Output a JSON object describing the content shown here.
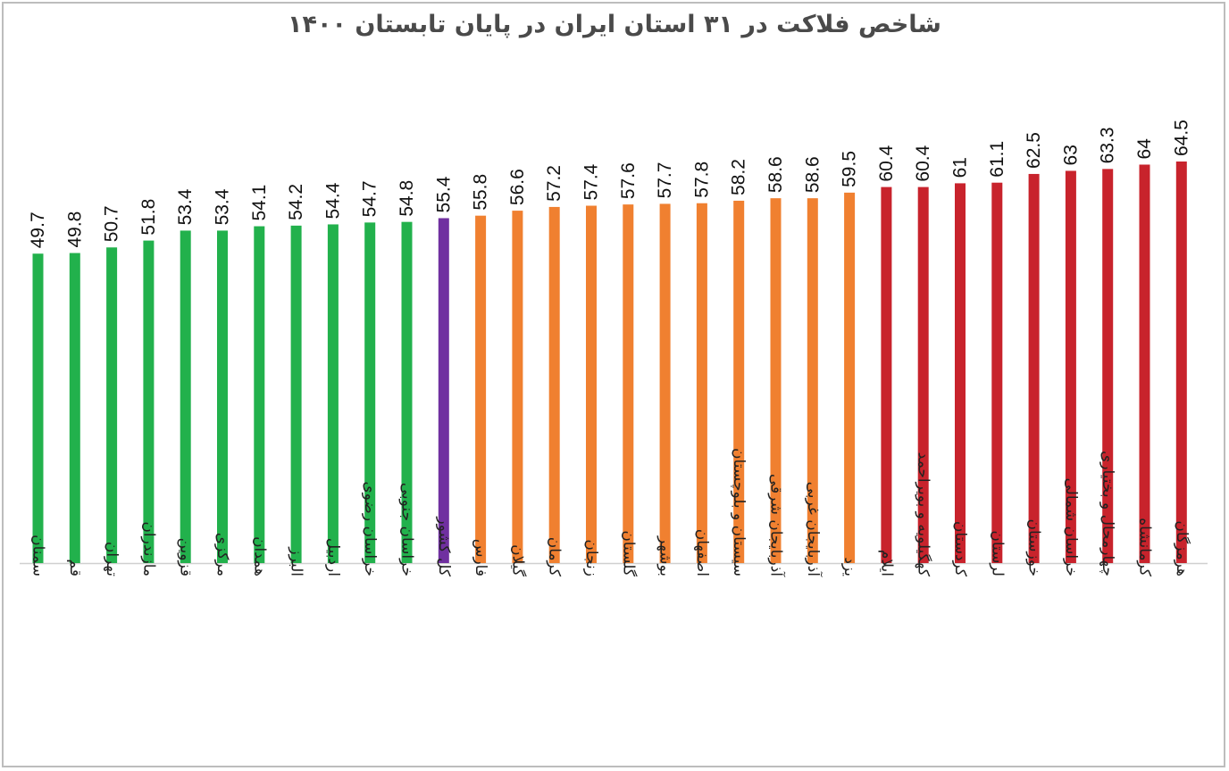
{
  "chart_data": {
    "type": "bar",
    "title": "شاخص فلاکت در ۳۱ استان ایران در پایان تابستان ۱۴۰۰",
    "categories": [
      "سمنان",
      "قم",
      "تهران",
      "مازندران",
      "قزوین",
      "مرکزی",
      "همدان",
      "البرز",
      "اردبیل",
      "خراسان رضوی",
      "خراسان جنوبی",
      "کل کشور",
      "فارس",
      "گیلان",
      "کرمان",
      "زنجان",
      "گلستان",
      "بوشهر",
      "اصفهان",
      "سیستان و بلوچستان",
      "آذربایجان شرقی",
      "آذربایجان غربی",
      "یزد",
      "ایلام",
      "کهگیلویه و بویراحمد",
      "کردستان",
      "لرستان",
      "خوزستان",
      "خراسان شمالی",
      "چهارمحال و بختیاری",
      "کرمانشاه",
      "هرمزگان"
    ],
    "values": [
      49.7,
      49.8,
      50.7,
      51.8,
      53.4,
      53.4,
      54.1,
      54.2,
      54.4,
      54.7,
      54.8,
      55.4,
      55.8,
      56.6,
      57.2,
      57.4,
      57.6,
      57.7,
      57.8,
      58.2,
      58.6,
      58.6,
      59.5,
      60.4,
      60.4,
      61,
      61.1,
      62.5,
      63,
      63.3,
      64,
      64.5
    ],
    "value_labels": [
      "49.7",
      "49.8",
      "50.7",
      "51.8",
      "53.4",
      "53.4",
      "54.1",
      "54.2",
      "54.4",
      "54.7",
      "54.8",
      "55.4",
      "55.8",
      "56.6",
      "57.2",
      "57.4",
      "57.6",
      "57.7",
      "57.8",
      "58.2",
      "58.6",
      "58.6",
      "59.5",
      "60.4",
      "60.4",
      "61",
      "61.1",
      "62.5",
      "63",
      "63.3",
      "64",
      "64.5"
    ],
    "bar_colors": [
      "#22b14c",
      "#22b14c",
      "#22b14c",
      "#22b14c",
      "#22b14c",
      "#22b14c",
      "#22b14c",
      "#22b14c",
      "#22b14c",
      "#22b14c",
      "#22b14c",
      "#7030a0",
      "#f08030",
      "#f08030",
      "#f08030",
      "#f08030",
      "#f08030",
      "#f08030",
      "#f08030",
      "#f08030",
      "#f08030",
      "#f08030",
      "#f08030",
      "#c8232c",
      "#c8232c",
      "#c8232c",
      "#c8232c",
      "#c8232c",
      "#c8232c",
      "#c8232c",
      "#c8232c",
      "#c8232c"
    ],
    "ylim": [
      0,
      67
    ],
    "grid": false,
    "legend": "none",
    "xlabel": "",
    "ylabel": ""
  }
}
